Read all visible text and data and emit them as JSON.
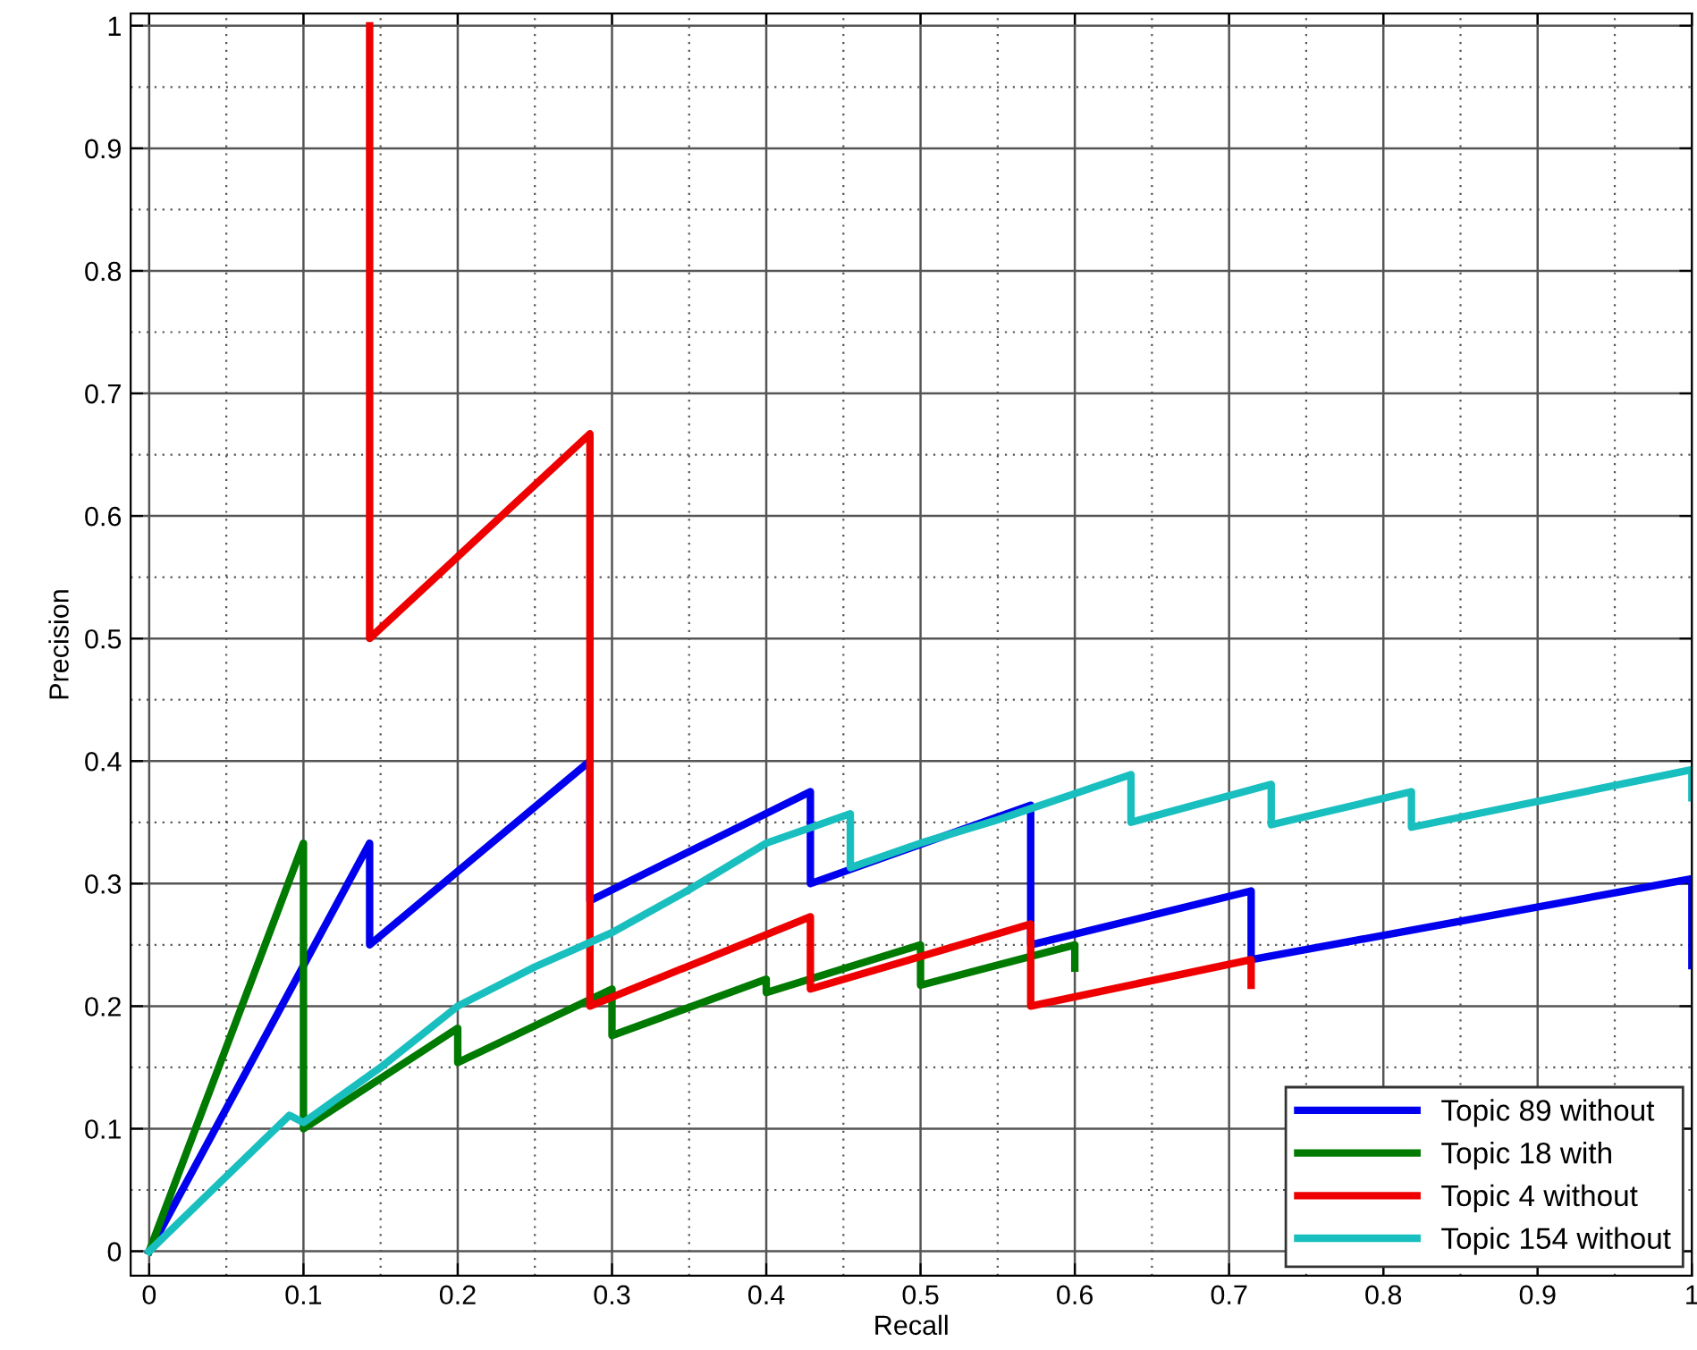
{
  "chart_data": {
    "type": "line",
    "xlabel": "Recall",
    "ylabel": "Precision",
    "series": [
      {
        "name": "Topic 89 without",
        "color": "#0000ee",
        "x": [
          0,
          0.1429,
          0.1429,
          0.2857,
          0.2857,
          0.4286,
          0.4286,
          0.5714,
          0.5714,
          0.7143,
          0.7143,
          1,
          1
        ],
        "values": [
          0,
          0.333,
          0.25,
          0.4,
          0.286,
          0.375,
          0.3,
          0.364,
          0.25,
          0.294,
          0.238,
          0.304,
          0.233
        ]
      },
      {
        "name": "Topic 18 with",
        "color": "#007a00",
        "x": [
          0,
          0.1,
          0.1,
          0.2,
          0.2,
          0.3,
          0.3,
          0.4,
          0.4,
          0.5,
          0.5,
          0.6,
          0.6
        ],
        "values": [
          0,
          0.333,
          0.1,
          0.182,
          0.154,
          0.214,
          0.176,
          0.222,
          0.211,
          0.25,
          0.217,
          0.25,
          0.231
        ]
      },
      {
        "name": "Topic 4 without",
        "color": "#ee0000",
        "x": [
          0.1429,
          0.1429,
          0.2857,
          0.2857,
          0.4286,
          0.4286,
          0.5714,
          0.5714,
          0.7143,
          0.7143
        ],
        "values": [
          1,
          0.5,
          0.667,
          0.2,
          0.273,
          0.214,
          0.267,
          0.2,
          0.238,
          0.217
        ]
      },
      {
        "name": "Topic 154 without",
        "color": "#19bfbf",
        "x": [
          0,
          0.0909,
          0.1,
          0.15,
          0.2,
          0.25,
          0.3,
          0.35,
          0.4,
          0.4545,
          0.4545,
          0.5,
          0.55,
          0.6364,
          0.6364,
          0.7273,
          0.7273,
          0.8182,
          0.8182,
          1,
          1
        ],
        "values": [
          0,
          0.111,
          0.105,
          0.15,
          0.2,
          0.232,
          0.26,
          0.295,
          0.333,
          0.357,
          0.313,
          0.333,
          0.352,
          0.389,
          0.35,
          0.381,
          0.348,
          0.375,
          0.346,
          0.393,
          0.37
        ]
      }
    ],
    "xlim": [
      -0.012,
      1.0
    ],
    "ylim": [
      -0.02,
      1.01
    ],
    "xticks": [
      0,
      0.1,
      0.2,
      0.3,
      0.4,
      0.5,
      0.6,
      0.7,
      0.8,
      0.9,
      1
    ],
    "yticks": [
      0,
      0.1,
      0.2,
      0.3,
      0.4,
      0.5,
      0.6,
      0.7,
      0.8,
      0.9,
      1
    ],
    "grid": true,
    "legend": "bottom right",
    "line_style": "solid",
    "marker": "none"
  }
}
